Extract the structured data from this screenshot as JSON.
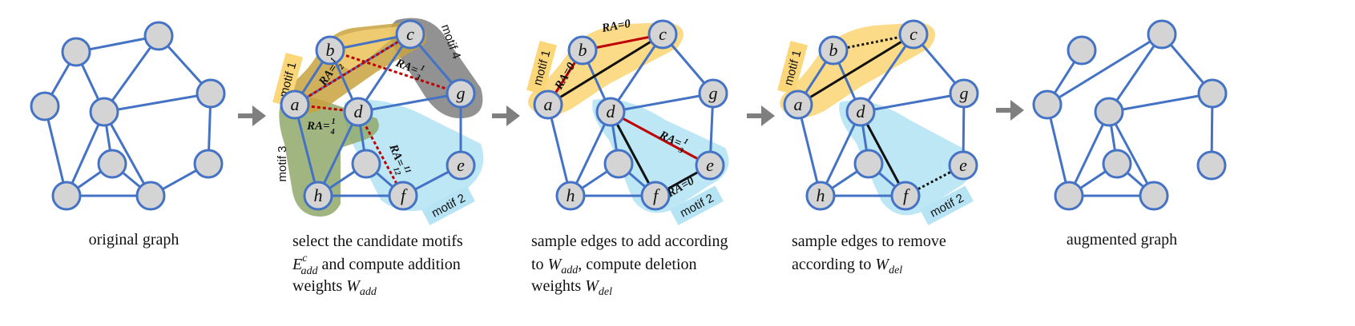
{
  "panels": [
    {
      "caption": [
        "original graph"
      ]
    },
    {
      "caption": [
        "select the candidate motifs",
        "E",
        "c",
        "add",
        " and compute addition",
        "weights ",
        "W",
        "add"
      ]
    },
    {
      "caption": [
        "sample edges to add according",
        "to ",
        "W",
        "add",
        ", compute deletion",
        "weights ",
        "W",
        "del"
      ]
    },
    {
      "caption": [
        "sample edges to remove",
        "according to ",
        "W",
        "del"
      ]
    },
    {
      "caption": [
        "augmented graph"
      ]
    }
  ],
  "node_labels": {
    "a": "a",
    "b": "b",
    "c": "c",
    "d": "d",
    "e": "e",
    "f": "f",
    "g": "g",
    "h": "h"
  },
  "motifs": {
    "m1": "motif 1",
    "m2": "motif 2",
    "m3": "motif 3",
    "m4": "motif 4"
  },
  "ra_labels": {
    "p2_ab": "RA=",
    "p2_ab_num": "1",
    "p2_ab_den": "2",
    "p2_ad": "RA=",
    "p2_ad_num": "1",
    "p2_ad_den": "4",
    "p2_bg": "RA=",
    "p2_bg_num": "1",
    "p2_bg_den": "3",
    "p2_df": "RA=",
    "p2_df_num": "11",
    "p2_df_den": "12",
    "p3_bc": "RA=0",
    "p3_ab": "RA=0",
    "p3_de": "RA=",
    "p3_de_num": "1",
    "p3_de_den": "3",
    "p3_fe": "RA=0"
  },
  "colors": {
    "node_fill": "#d4d4d4",
    "node_stroke": "#4472c4",
    "edge": "#4472c4",
    "add_edge": "#c00000",
    "motif1": "#fbd77a",
    "motif2": "#b7e4f5",
    "motif3": "#8fa86a",
    "motif4": "#7f7f7f",
    "arrow": "#7f7f7f"
  }
}
